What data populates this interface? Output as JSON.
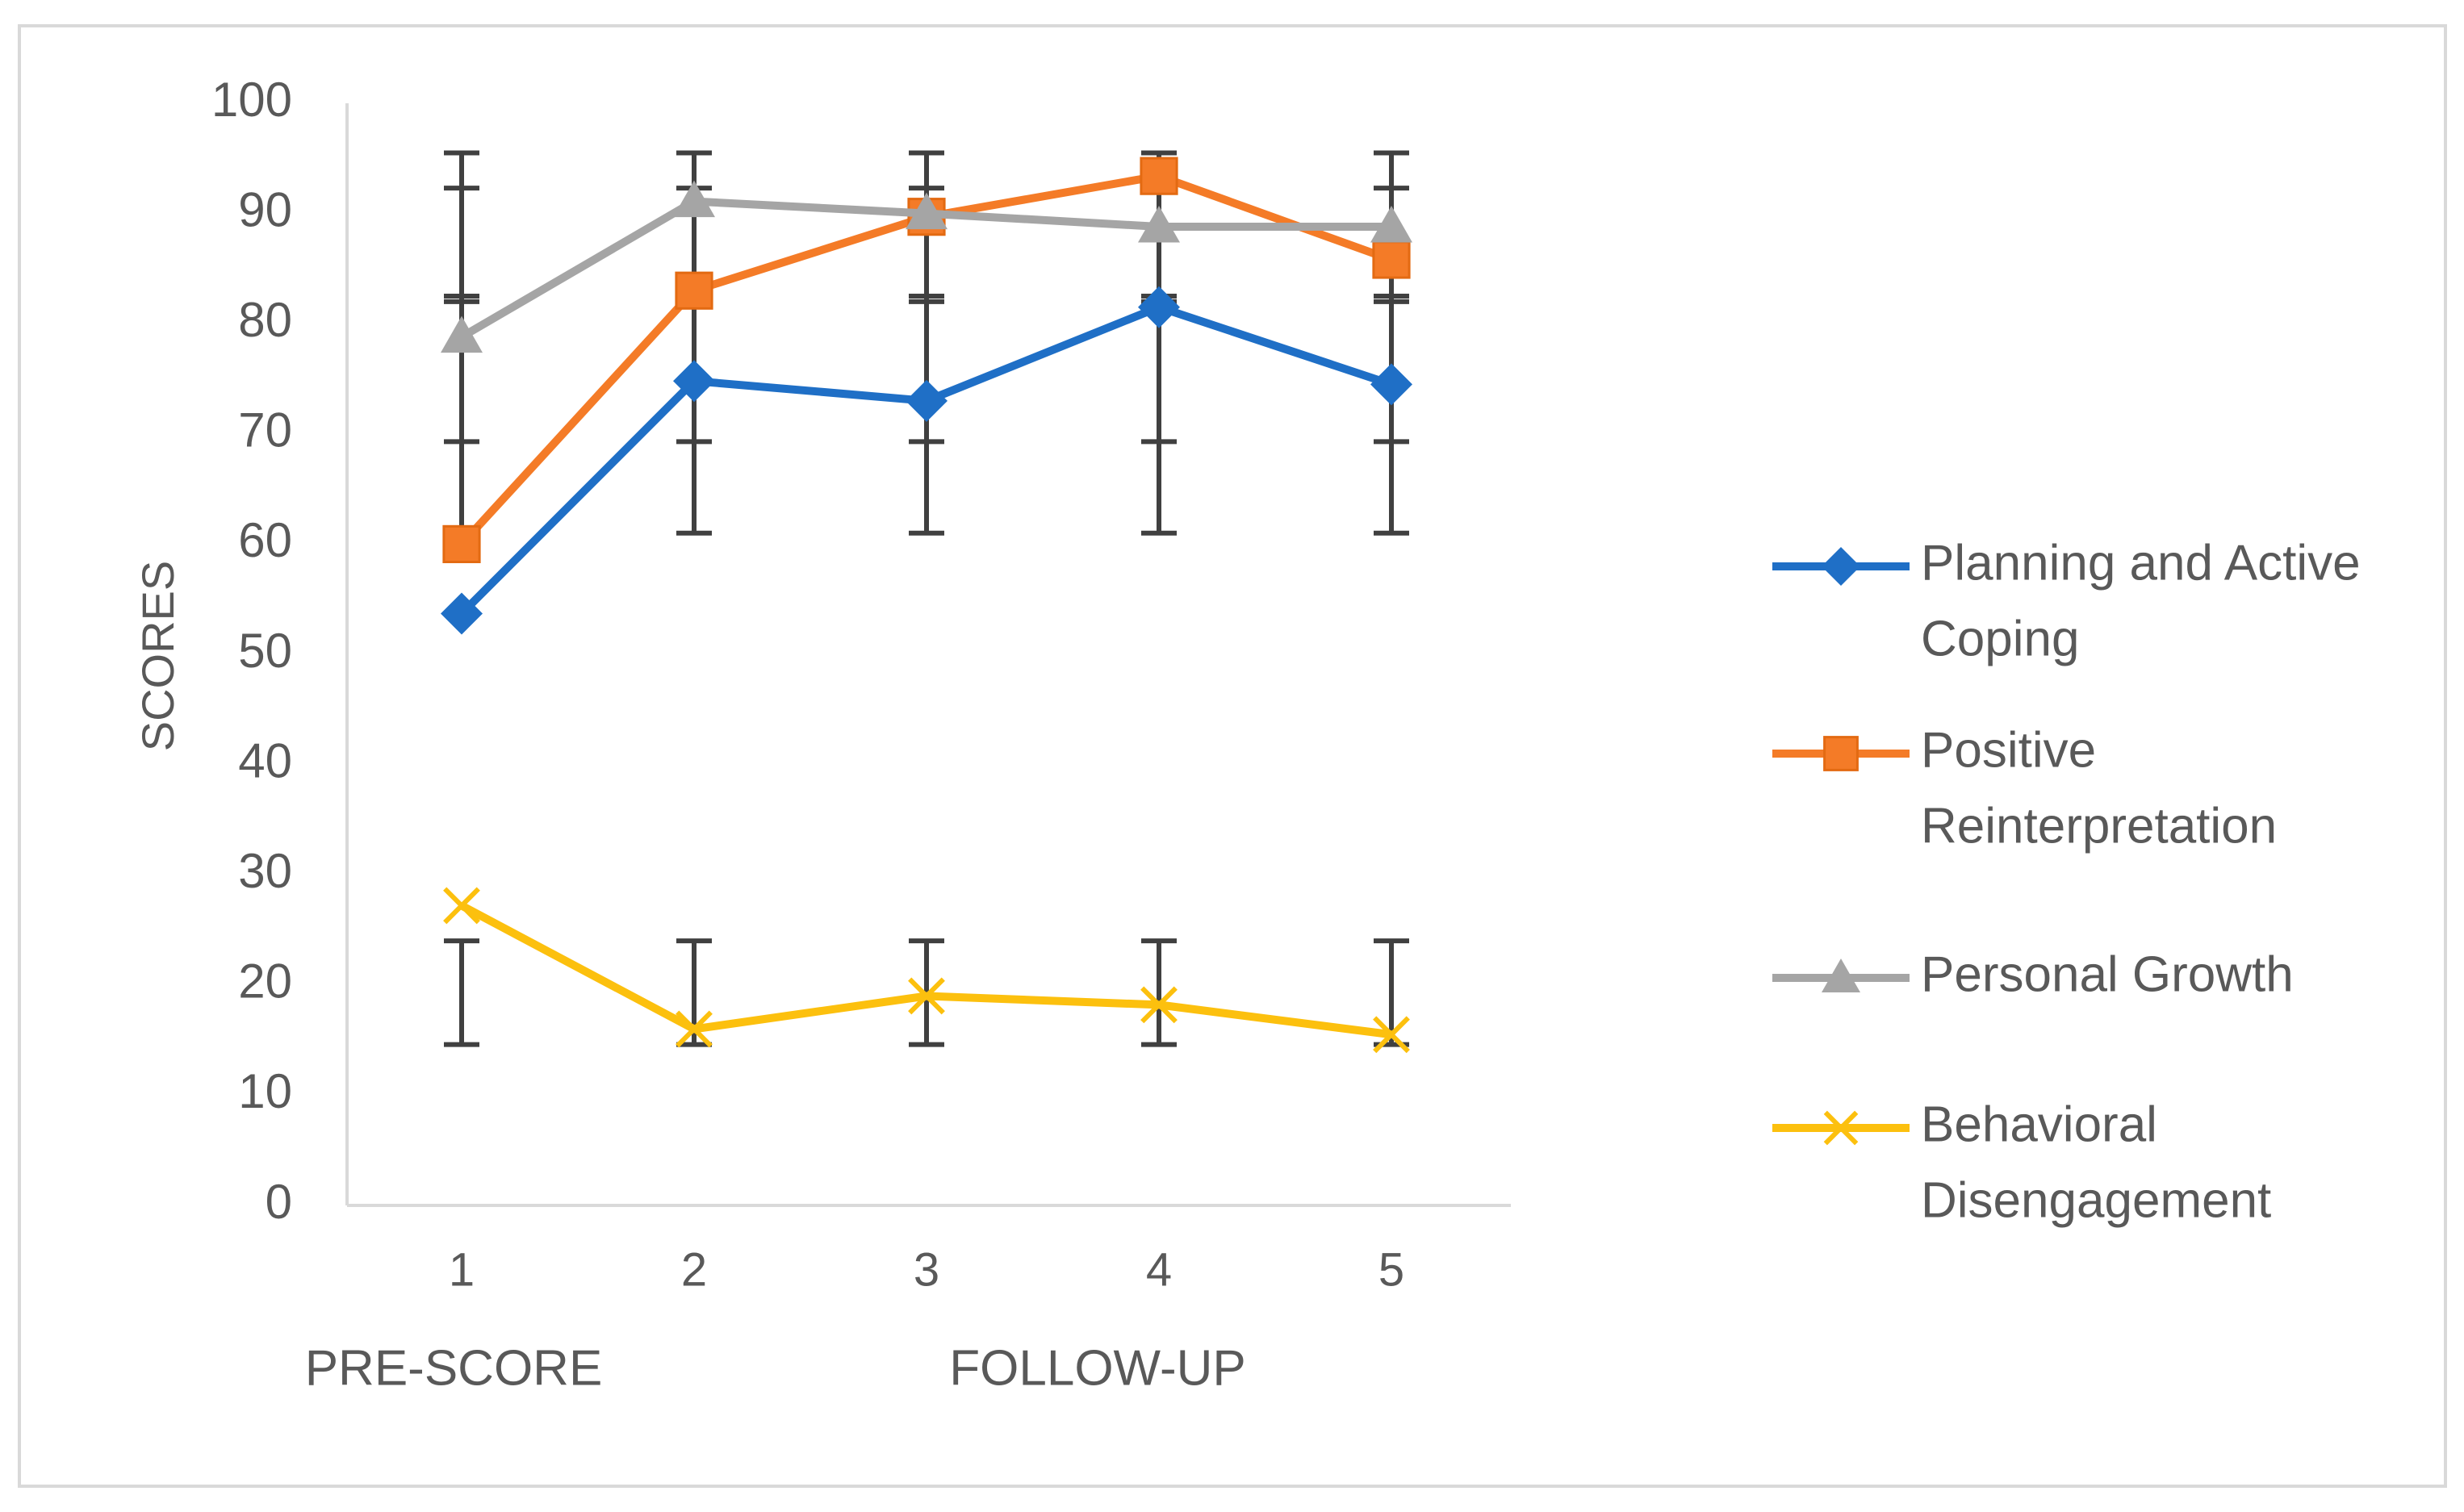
{
  "chart_data": {
    "type": "line",
    "title": "",
    "ylabel": "SCORES",
    "xlabel_groups": [
      "PRE-SCORE",
      "FOLLOW-UP"
    ],
    "categories": [
      "1",
      "2",
      "3",
      "4",
      "5"
    ],
    "ylim": [
      0,
      100
    ],
    "ytick_step": 10,
    "yticks": [
      "0",
      "10",
      "20",
      "30",
      "40",
      "50",
      "60",
      "70",
      "80",
      "90",
      "100"
    ],
    "grid": false,
    "legend_position": "right",
    "series": [
      {
        "name": "Planning and Active Coping",
        "legend_lines": [
          "Planning and Active",
          "Coping"
        ],
        "color": "#1f6fc6",
        "marker": "diamond",
        "values": [
          53.7,
          74.8,
          73,
          81.5,
          74.5
        ]
      },
      {
        "name": "Positive Reinterpretation",
        "legend_lines": [
          "Positive",
          "Reinterpretation"
        ],
        "color": "#f47b27",
        "marker": "square",
        "values": [
          60,
          83,
          89.7,
          93.4,
          85.8
        ]
      },
      {
        "name": "Personal Growth",
        "legend_lines": [
          "Personal Growth"
        ],
        "color": "#a5a5a5",
        "marker": "triangle",
        "values": [
          78.8,
          91.1,
          90,
          88.8,
          88.8
        ]
      },
      {
        "name": "Behavioral Disengagement",
        "legend_lines": [
          "Behavioral",
          "Disengagement"
        ],
        "color": "#fcc00e",
        "marker": "x",
        "values": [
          27.2,
          16,
          19,
          18.2,
          15.5
        ]
      }
    ],
    "error_bars": [
      {
        "low": 61,
        "high": 95.5,
        "extra_ticks": [
          69.3,
          82,
          92.3,
          82.5
        ]
      },
      {
        "low": 14.6,
        "high": 24,
        "extra_ticks": []
      }
    ],
    "colors": {
      "axis": "#d9d9d9",
      "text": "#595959",
      "errorbar": "#404040",
      "border": "#d9d9d9"
    }
  }
}
